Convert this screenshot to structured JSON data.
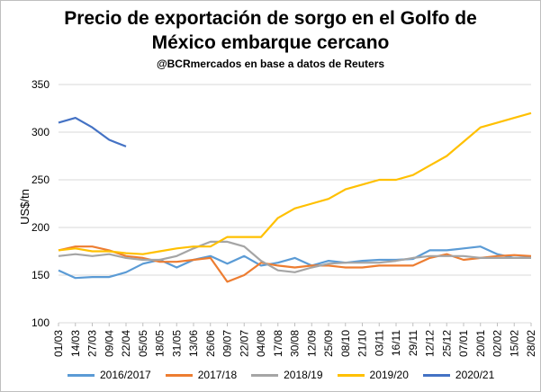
{
  "chart_data": {
    "type": "line",
    "title_line1": "Precio de exportación de sorgo en el Golfo de",
    "title_line2": "México embarque cercano",
    "subtitle": "@BCRmercados en base a datos de Reuters",
    "ylabel": "US$/tn",
    "ylim": [
      100,
      350
    ],
    "yticks": [
      100,
      150,
      200,
      250,
      300,
      350
    ],
    "grid": true,
    "legend_position": "bottom",
    "categories": [
      "01/03",
      "14/03",
      "27/03",
      "09/04",
      "22/04",
      "05/05",
      "18/05",
      "31/05",
      "13/06",
      "26/06",
      "09/07",
      "22/07",
      "04/08",
      "17/08",
      "30/08",
      "12/09",
      "25/09",
      "08/10",
      "21/10",
      "03/11",
      "16/11",
      "29/11",
      "12/12",
      "25/12",
      "07/01",
      "20/01",
      "02/02",
      "15/02",
      "28/02"
    ],
    "series": [
      {
        "name": "2016/2017",
        "color": "#5b9bd5",
        "values": [
          155,
          147,
          148,
          148,
          153,
          162,
          166,
          158,
          166,
          170,
          162,
          170,
          160,
          163,
          168,
          160,
          165,
          163,
          165,
          166,
          166,
          167,
          176,
          176,
          178,
          180,
          172,
          168,
          169
        ]
      },
      {
        "name": "2017/18",
        "color": "#ed7d31",
        "values": [
          176,
          180,
          180,
          176,
          170,
          168,
          164,
          164,
          166,
          168,
          143,
          150,
          163,
          160,
          158,
          160,
          160,
          158,
          158,
          160,
          160,
          160,
          168,
          172,
          166,
          168,
          170,
          171,
          170
        ]
      },
      {
        "name": "2018/19",
        "color": "#a5a5a5",
        "values": [
          170,
          172,
          170,
          172,
          168,
          166,
          166,
          170,
          178,
          185,
          185,
          180,
          165,
          155,
          153,
          158,
          162,
          163,
          163,
          163,
          165,
          168,
          170,
          170,
          170,
          168,
          168,
          168,
          168
        ]
      },
      {
        "name": "2019/20",
        "color": "#ffc000",
        "values": [
          176,
          178,
          175,
          175,
          173,
          172,
          175,
          178,
          180,
          180,
          190,
          190,
          190,
          210,
          220,
          225,
          230,
          240,
          245,
          250,
          250,
          255,
          265,
          275,
          290,
          305,
          310,
          315,
          320
        ]
      },
      {
        "name": "2020/21",
        "color": "#4472c4",
        "values": [
          310,
          315,
          305,
          292,
          285,
          null,
          null,
          null,
          null,
          null,
          null,
          null,
          null,
          null,
          null,
          null,
          null,
          null,
          null,
          null,
          null,
          null,
          null,
          null,
          null,
          null,
          null,
          null,
          null
        ]
      }
    ]
  }
}
